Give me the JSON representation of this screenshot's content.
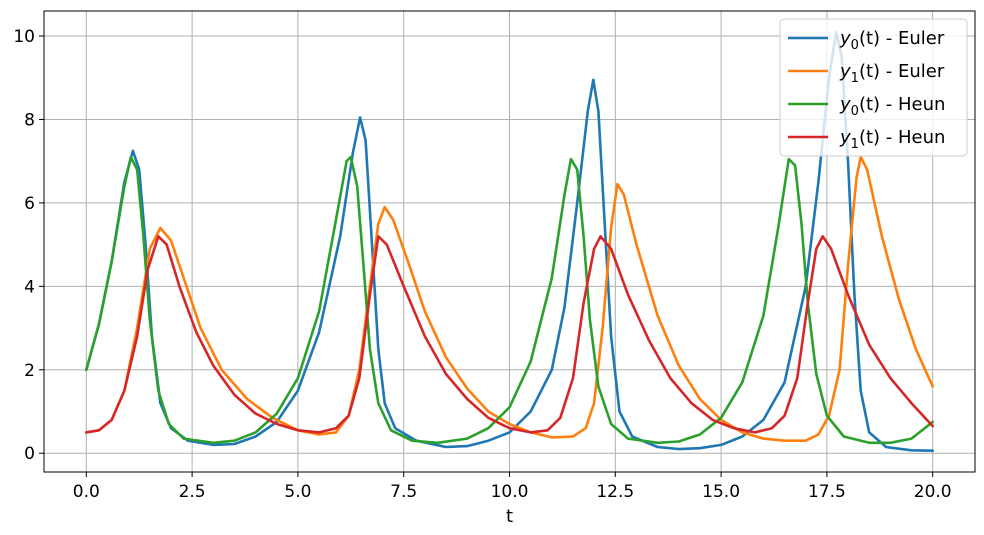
{
  "chart_data": {
    "type": "line",
    "xlabel": "t",
    "ylabel": "",
    "xlim": [
      -1.0,
      21.0
    ],
    "ylim": [
      -0.45,
      10.6
    ],
    "xticks": [
      0.0,
      2.5,
      5.0,
      7.5,
      10.0,
      12.5,
      15.0,
      17.5,
      20.0
    ],
    "xtick_labels": [
      "0.0",
      "2.5",
      "5.0",
      "7.5",
      "10.0",
      "12.5",
      "15.0",
      "17.5",
      "20.0"
    ],
    "yticks": [
      0,
      2,
      4,
      6,
      8,
      10
    ],
    "ytick_labels": [
      "0",
      "2",
      "4",
      "6",
      "8",
      "10"
    ],
    "grid": true,
    "legend_position": "top-right",
    "series": [
      {
        "name": "y0(t) - Euler",
        "legend_base": "y",
        "legend_sub": "0",
        "legend_rest": "(t) - Euler",
        "color": "#1f77b4",
        "points": [
          [
            0,
            2.0
          ],
          [
            0.3,
            3.1
          ],
          [
            0.6,
            4.6
          ],
          [
            0.9,
            6.5
          ],
          [
            1.1,
            7.25
          ],
          [
            1.25,
            6.8
          ],
          [
            1.4,
            5.0
          ],
          [
            1.55,
            2.8
          ],
          [
            1.75,
            1.2
          ],
          [
            2.0,
            0.6
          ],
          [
            2.4,
            0.3
          ],
          [
            3.0,
            0.2
          ],
          [
            3.5,
            0.22
          ],
          [
            4.0,
            0.4
          ],
          [
            4.5,
            0.75
          ],
          [
            5.0,
            1.5
          ],
          [
            5.5,
            2.9
          ],
          [
            6.0,
            5.2
          ],
          [
            6.3,
            7.2
          ],
          [
            6.47,
            8.05
          ],
          [
            6.6,
            7.5
          ],
          [
            6.75,
            5.0
          ],
          [
            6.9,
            2.5
          ],
          [
            7.05,
            1.2
          ],
          [
            7.3,
            0.6
          ],
          [
            7.8,
            0.3
          ],
          [
            8.5,
            0.15
          ],
          [
            9.0,
            0.17
          ],
          [
            9.5,
            0.3
          ],
          [
            10.0,
            0.5
          ],
          [
            10.5,
            1.0
          ],
          [
            11.0,
            2.0
          ],
          [
            11.3,
            3.5
          ],
          [
            11.6,
            6.0
          ],
          [
            11.85,
            8.2
          ],
          [
            11.98,
            8.95
          ],
          [
            12.1,
            8.2
          ],
          [
            12.25,
            5.5
          ],
          [
            12.4,
            2.8
          ],
          [
            12.6,
            1.0
          ],
          [
            12.9,
            0.4
          ],
          [
            13.5,
            0.15
          ],
          [
            14.0,
            0.1
          ],
          [
            14.5,
            0.12
          ],
          [
            15.0,
            0.2
          ],
          [
            15.5,
            0.4
          ],
          [
            16.0,
            0.8
          ],
          [
            16.5,
            1.7
          ],
          [
            17.0,
            4.0
          ],
          [
            17.3,
            6.5
          ],
          [
            17.55,
            9.0
          ],
          [
            17.72,
            10.1
          ],
          [
            17.85,
            9.5
          ],
          [
            18.0,
            7.0
          ],
          [
            18.15,
            3.8
          ],
          [
            18.3,
            1.5
          ],
          [
            18.5,
            0.5
          ],
          [
            18.9,
            0.15
          ],
          [
            19.5,
            0.07
          ],
          [
            20.0,
            0.06
          ]
        ]
      },
      {
        "name": "y1(t) - Euler",
        "legend_base": "y",
        "legend_sub": "1",
        "legend_rest": "(t) - Euler",
        "color": "#ff7f0e",
        "points": [
          [
            0,
            0.5
          ],
          [
            0.3,
            0.55
          ],
          [
            0.6,
            0.8
          ],
          [
            0.9,
            1.5
          ],
          [
            1.2,
            3.0
          ],
          [
            1.5,
            4.9
          ],
          [
            1.75,
            5.4
          ],
          [
            2.0,
            5.1
          ],
          [
            2.3,
            4.2
          ],
          [
            2.7,
            3.0
          ],
          [
            3.2,
            2.0
          ],
          [
            3.8,
            1.3
          ],
          [
            4.4,
            0.85
          ],
          [
            5.0,
            0.55
          ],
          [
            5.5,
            0.45
          ],
          [
            5.9,
            0.5
          ],
          [
            6.2,
            0.9
          ],
          [
            6.45,
            2.0
          ],
          [
            6.7,
            4.0
          ],
          [
            6.9,
            5.5
          ],
          [
            7.05,
            5.9
          ],
          [
            7.25,
            5.6
          ],
          [
            7.6,
            4.6
          ],
          [
            8.0,
            3.4
          ],
          [
            8.5,
            2.3
          ],
          [
            9.0,
            1.55
          ],
          [
            9.5,
            1.0
          ],
          [
            10.0,
            0.7
          ],
          [
            10.5,
            0.5
          ],
          [
            11.0,
            0.38
          ],
          [
            11.5,
            0.4
          ],
          [
            11.8,
            0.6
          ],
          [
            12.0,
            1.2
          ],
          [
            12.2,
            3.0
          ],
          [
            12.4,
            5.4
          ],
          [
            12.55,
            6.45
          ],
          [
            12.7,
            6.2
          ],
          [
            13.0,
            5.0
          ],
          [
            13.5,
            3.3
          ],
          [
            14.0,
            2.1
          ],
          [
            14.5,
            1.3
          ],
          [
            15.0,
            0.8
          ],
          [
            15.5,
            0.5
          ],
          [
            16.0,
            0.35
          ],
          [
            16.5,
            0.3
          ],
          [
            17.0,
            0.3
          ],
          [
            17.3,
            0.45
          ],
          [
            17.55,
            0.9
          ],
          [
            17.8,
            2.0
          ],
          [
            18.0,
            4.5
          ],
          [
            18.2,
            6.6
          ],
          [
            18.3,
            7.1
          ],
          [
            18.45,
            6.8
          ],
          [
            18.8,
            5.2
          ],
          [
            19.2,
            3.7
          ],
          [
            19.6,
            2.5
          ],
          [
            20.0,
            1.6
          ]
        ]
      },
      {
        "name": "y0(t) - Heun",
        "legend_base": "y",
        "legend_sub": "0",
        "legend_rest": "(t) - Heun",
        "color": "#2ca02c",
        "points": [
          [
            0,
            2.0
          ],
          [
            0.3,
            3.1
          ],
          [
            0.6,
            4.6
          ],
          [
            0.9,
            6.4
          ],
          [
            1.05,
            7.1
          ],
          [
            1.2,
            6.8
          ],
          [
            1.35,
            5.2
          ],
          [
            1.5,
            3.2
          ],
          [
            1.7,
            1.5
          ],
          [
            1.95,
            0.7
          ],
          [
            2.3,
            0.35
          ],
          [
            3.0,
            0.25
          ],
          [
            3.5,
            0.3
          ],
          [
            4.0,
            0.5
          ],
          [
            4.5,
            0.95
          ],
          [
            5.0,
            1.8
          ],
          [
            5.5,
            3.4
          ],
          [
            5.9,
            5.6
          ],
          [
            6.15,
            7.0
          ],
          [
            6.25,
            7.1
          ],
          [
            6.4,
            6.4
          ],
          [
            6.55,
            4.5
          ],
          [
            6.7,
            2.5
          ],
          [
            6.9,
            1.2
          ],
          [
            7.2,
            0.55
          ],
          [
            7.7,
            0.3
          ],
          [
            8.3,
            0.25
          ],
          [
            9.0,
            0.35
          ],
          [
            9.5,
            0.6
          ],
          [
            10.0,
            1.1
          ],
          [
            10.5,
            2.2
          ],
          [
            11.0,
            4.2
          ],
          [
            11.3,
            6.2
          ],
          [
            11.45,
            7.05
          ],
          [
            11.6,
            6.8
          ],
          [
            11.75,
            5.2
          ],
          [
            11.9,
            3.2
          ],
          [
            12.1,
            1.6
          ],
          [
            12.4,
            0.7
          ],
          [
            12.8,
            0.35
          ],
          [
            13.5,
            0.25
          ],
          [
            14.0,
            0.28
          ],
          [
            14.5,
            0.45
          ],
          [
            15.0,
            0.85
          ],
          [
            15.5,
            1.7
          ],
          [
            16.0,
            3.3
          ],
          [
            16.35,
            5.4
          ],
          [
            16.6,
            7.05
          ],
          [
            16.75,
            6.9
          ],
          [
            16.9,
            5.5
          ],
          [
            17.05,
            3.6
          ],
          [
            17.25,
            1.9
          ],
          [
            17.5,
            0.9
          ],
          [
            17.9,
            0.4
          ],
          [
            18.5,
            0.25
          ],
          [
            19.0,
            0.25
          ],
          [
            19.5,
            0.35
          ],
          [
            20.0,
            0.75
          ]
        ]
      },
      {
        "name": "y1(t) - Heun",
        "legend_base": "y",
        "legend_sub": "1",
        "legend_rest": "(t) - Heun",
        "color": "#d62728",
        "points": [
          [
            0,
            0.5
          ],
          [
            0.3,
            0.55
          ],
          [
            0.6,
            0.8
          ],
          [
            0.9,
            1.5
          ],
          [
            1.2,
            2.8
          ],
          [
            1.45,
            4.4
          ],
          [
            1.7,
            5.2
          ],
          [
            1.9,
            5.0
          ],
          [
            2.2,
            4.0
          ],
          [
            2.6,
            2.9
          ],
          [
            3.0,
            2.1
          ],
          [
            3.5,
            1.4
          ],
          [
            4.0,
            0.95
          ],
          [
            4.5,
            0.7
          ],
          [
            5.0,
            0.55
          ],
          [
            5.5,
            0.5
          ],
          [
            5.9,
            0.6
          ],
          [
            6.2,
            0.9
          ],
          [
            6.45,
            1.8
          ],
          [
            6.7,
            3.8
          ],
          [
            6.9,
            5.2
          ],
          [
            7.1,
            5.0
          ],
          [
            7.5,
            4.0
          ],
          [
            8.0,
            2.8
          ],
          [
            8.5,
            1.9
          ],
          [
            9.0,
            1.3
          ],
          [
            9.5,
            0.85
          ],
          [
            10.0,
            0.6
          ],
          [
            10.5,
            0.5
          ],
          [
            10.9,
            0.55
          ],
          [
            11.2,
            0.85
          ],
          [
            11.5,
            1.8
          ],
          [
            11.75,
            3.6
          ],
          [
            12.0,
            4.9
          ],
          [
            12.15,
            5.2
          ],
          [
            12.4,
            4.9
          ],
          [
            12.8,
            3.8
          ],
          [
            13.3,
            2.7
          ],
          [
            13.8,
            1.8
          ],
          [
            14.3,
            1.2
          ],
          [
            14.8,
            0.8
          ],
          [
            15.3,
            0.6
          ],
          [
            15.8,
            0.5
          ],
          [
            16.2,
            0.6
          ],
          [
            16.5,
            0.9
          ],
          [
            16.8,
            1.8
          ],
          [
            17.05,
            3.6
          ],
          [
            17.25,
            4.9
          ],
          [
            17.4,
            5.2
          ],
          [
            17.6,
            4.9
          ],
          [
            18.0,
            3.8
          ],
          [
            18.5,
            2.6
          ],
          [
            19.0,
            1.8
          ],
          [
            19.5,
            1.2
          ],
          [
            20.0,
            0.65
          ]
        ]
      }
    ]
  }
}
